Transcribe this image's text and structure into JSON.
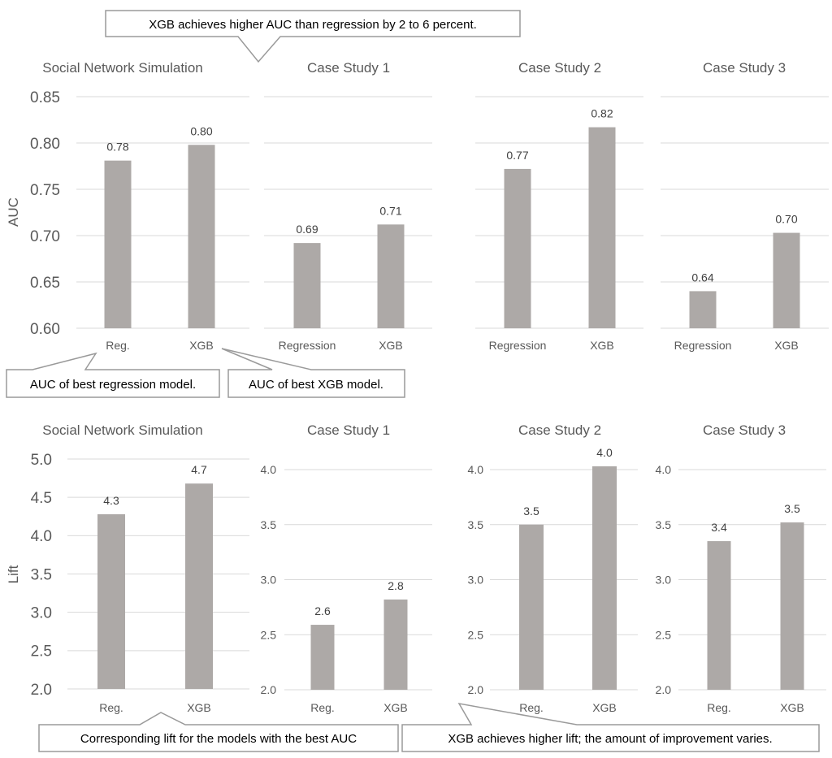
{
  "colors": {
    "bar": "#ada9a7",
    "grid": "#d9d9d9",
    "axis_text": "#595959",
    "title_text": "#595959",
    "callout_border": "#9a9a9a",
    "callout_text": "#000000"
  },
  "callouts": {
    "top": "XGB achieves higher AUC than regression by 2 to 6 percent.",
    "best_regression": "AUC of best regression model.",
    "best_xgb": "AUC of best XGB model.",
    "corresponding_lift": "Corresponding lift for the models with the best AUC",
    "higher_lift": "XGB achieves higher lift; the amount of improvement varies."
  },
  "chart_data": [
    {
      "id": "auc-social",
      "type": "bar",
      "title": "Social Network Simulation",
      "ylabel": "AUC",
      "categories": [
        "Reg.",
        "XGB"
      ],
      "values": [
        0.781,
        0.798
      ],
      "data_labels": [
        "0.78",
        "0.80"
      ],
      "ylim": [
        0.6,
        0.85
      ],
      "yticks": [
        "0.60",
        "0.65",
        "0.70",
        "0.75",
        "0.80",
        "0.85"
      ],
      "grid": true
    },
    {
      "id": "auc-cs1",
      "type": "bar",
      "title": "Case Study 1",
      "ylabel": "",
      "categories": [
        "Regression",
        "XGB"
      ],
      "values": [
        0.692,
        0.712
      ],
      "data_labels": [
        "0.69",
        "0.71"
      ],
      "ylim": [
        0.6,
        0.85
      ],
      "yticks": [],
      "grid": true
    },
    {
      "id": "auc-cs2",
      "type": "bar",
      "title": "Case Study 2",
      "ylabel": "",
      "categories": [
        "Regression",
        "XGB"
      ],
      "values": [
        0.772,
        0.817
      ],
      "data_labels": [
        "0.77",
        "0.82"
      ],
      "ylim": [
        0.6,
        0.85
      ],
      "yticks": [],
      "grid": true
    },
    {
      "id": "auc-cs3",
      "type": "bar",
      "title": "Case Study 3",
      "ylabel": "",
      "categories": [
        "Regression",
        "XGB"
      ],
      "values": [
        0.64,
        0.703
      ],
      "data_labels": [
        "0.64",
        "0.70"
      ],
      "ylim": [
        0.6,
        0.85
      ],
      "yticks": [],
      "grid": true
    },
    {
      "id": "lift-social",
      "type": "bar",
      "title": "Social Network Simulation",
      "ylabel": "Lift",
      "categories": [
        "Reg.",
        "XGB"
      ],
      "values": [
        4.28,
        4.68
      ],
      "data_labels": [
        "4.3",
        "4.7"
      ],
      "ylim": [
        2.0,
        5.0
      ],
      "yticks": [
        "2.0",
        "2.5",
        "3.0",
        "3.5",
        "4.0",
        "4.5",
        "5.0"
      ],
      "grid": true
    },
    {
      "id": "lift-cs1",
      "type": "bar",
      "title": "Case Study 1",
      "ylabel": "",
      "categories": [
        "Reg.",
        "XGB"
      ],
      "values": [
        2.59,
        2.82
      ],
      "data_labels": [
        "2.6",
        "2.8"
      ],
      "ylim": [
        2.0,
        4.0
      ],
      "yticks": [
        "2.0",
        "2.5",
        "3.0",
        "3.5",
        "4.0"
      ],
      "grid": true
    },
    {
      "id": "lift-cs2",
      "type": "bar",
      "title": "Case Study 2",
      "ylabel": "",
      "categories": [
        "Reg.",
        "XGB"
      ],
      "values": [
        3.5,
        4.03
      ],
      "data_labels": [
        "3.5",
        "4.0"
      ],
      "ylim": [
        2.0,
        4.0
      ],
      "yticks": [
        "2.0",
        "2.5",
        "3.0",
        "3.5",
        "4.0"
      ],
      "grid": true
    },
    {
      "id": "lift-cs3",
      "type": "bar",
      "title": "Case Study 3",
      "ylabel": "",
      "categories": [
        "Reg.",
        "XGB"
      ],
      "values": [
        3.35,
        3.52
      ],
      "data_labels": [
        "3.4",
        "3.5"
      ],
      "ylim": [
        2.0,
        4.0
      ],
      "yticks": [
        "2.0",
        "2.5",
        "3.0",
        "3.5",
        "4.0"
      ],
      "grid": true
    }
  ]
}
